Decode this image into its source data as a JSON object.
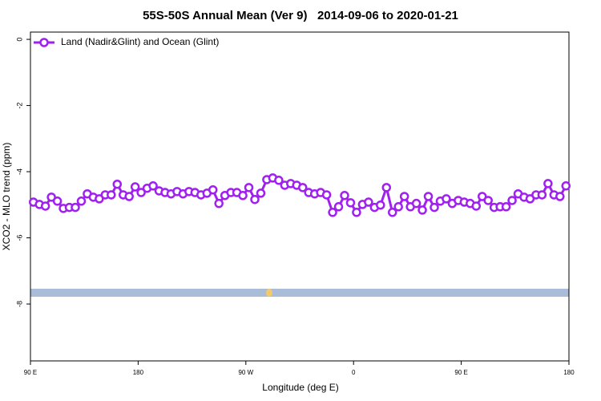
{
  "chart_data": {
    "type": "line",
    "title": "55S-50S Annual Mean (Ver 9)   2014-09-06 to 2020-01-21",
    "xlabel": "Longitude (deg E)",
    "ylabel": "XCO2 - MLO trend (ppm)",
    "x": [
      92.5,
      97.5,
      102.5,
      107.5,
      112.5,
      117.5,
      122.5,
      127.5,
      132.5,
      137.5,
      142.5,
      147.5,
      152.5,
      157.5,
      162.5,
      167.5,
      172.5,
      177.5,
      182.5,
      187.5,
      192.5,
      197.5,
      202.5,
      207.5,
      212.5,
      217.5,
      222.5,
      227.5,
      232.5,
      237.5,
      242.5,
      247.5,
      252.5,
      257.5,
      262.5,
      267.5,
      272.5,
      277.5,
      282.5,
      287.5,
      292.5,
      297.5,
      302.5,
      307.5,
      312.5,
      317.5,
      322.5,
      327.5,
      332.5,
      337.5,
      342.5,
      347.5,
      352.5,
      357.5,
      362.5,
      367.5,
      372.5,
      377.5,
      382.5,
      387.5,
      392.5,
      397.5,
      402.5,
      407.5,
      412.5,
      417.5,
      422.5,
      427.5,
      432.5,
      437.5,
      442.5,
      447.5,
      452.5,
      457.5,
      462.5,
      467.5,
      472.5,
      477.5,
      482.5,
      487.5,
      492.5,
      497.5,
      502.5,
      507.5,
      512.5,
      517.5,
      522.5,
      527.5,
      532.5,
      537.5
    ],
    "series": [
      {
        "name": "Land (Nadir&Glint) and Ocean (Glint)",
        "color": "#a020f0",
        "values": [
          -4.92,
          -4.99,
          -5.04,
          -4.77,
          -4.89,
          -5.11,
          -5.08,
          -5.08,
          -4.89,
          -4.67,
          -4.77,
          -4.82,
          -4.7,
          -4.7,
          -4.38,
          -4.7,
          -4.75,
          -4.46,
          -4.63,
          -4.5,
          -4.43,
          -4.58,
          -4.63,
          -4.67,
          -4.6,
          -4.67,
          -4.6,
          -4.63,
          -4.7,
          -4.65,
          -4.55,
          -4.96,
          -4.72,
          -4.63,
          -4.63,
          -4.72,
          -4.48,
          -4.84,
          -4.65,
          -4.24,
          -4.19,
          -4.26,
          -4.41,
          -4.36,
          -4.41,
          -4.48,
          -4.63,
          -4.67,
          -4.63,
          -4.7,
          -5.23,
          -5.06,
          -4.72,
          -4.94,
          -5.23,
          -4.99,
          -4.92,
          -5.08,
          -5.01,
          -4.48,
          -5.23,
          -5.06,
          -4.75,
          -5.06,
          -4.96,
          -5.16,
          -4.75,
          -5.08,
          -4.89,
          -4.82,
          -4.96,
          -4.87,
          -4.92,
          -4.96,
          -5.04,
          -4.75,
          -4.87,
          -5.08,
          -5.06,
          -5.06,
          -4.87,
          -4.67,
          -4.77,
          -4.82,
          -4.7,
          -4.7,
          -4.36,
          -4.7,
          -4.75,
          -4.43
        ]
      }
    ],
    "xlim": [
      90,
      540
    ],
    "xticks": [
      {
        "value": 90,
        "label": "90 E"
      },
      180,
      {
        "value": 270,
        "label": "90 W"
      },
      {
        "value": 360,
        "label": "0"
      },
      {
        "value": 450,
        "label": "90 E"
      },
      {
        "value": 540,
        "label": "180"
      }
    ],
    "ylim": [
      -9.72,
      0.22
    ],
    "yticks": [
      0,
      -2,
      -4,
      -6,
      -8
    ],
    "legend": "upper left"
  }
}
